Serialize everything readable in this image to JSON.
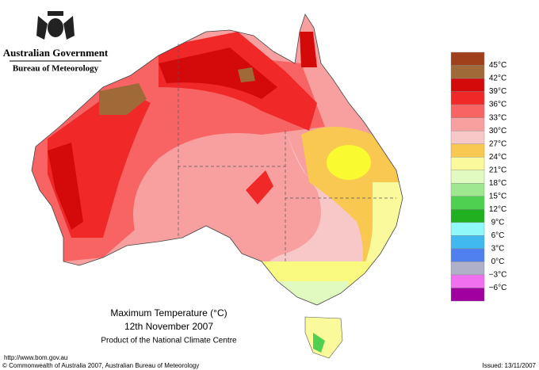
{
  "header": {
    "government": "Australian Government",
    "agency": "Bureau of Meteorology"
  },
  "legend": {
    "labels": [
      "45°C",
      "42°C",
      "39°C",
      "36°C",
      "33°C",
      "30°C",
      "27°C",
      "24°C",
      "21°C",
      "18°C",
      "15°C",
      "12°C",
      "9°C",
      "6°C",
      "3°C",
      "0°C",
      "−3°C",
      "−6°C"
    ],
    "colors": [
      "#a0401a",
      "#a06a38",
      "#d40a0a",
      "#f02828",
      "#f86464",
      "#f8a0a0",
      "#f8c8c8",
      "#f8c850",
      "#fafa9c",
      "#e0fac0",
      "#a0e890",
      "#50d050",
      "#20b020",
      "#90f8f8",
      "#40b8f0",
      "#5080f0",
      "#b0b0c8",
      "#f070f0",
      "#a000a0"
    ]
  },
  "map": {
    "title": "Maximum Temperature (°C)",
    "date": "12th November 2007",
    "product": "Product of the National Climate Centre"
  },
  "footer": {
    "url": "http://www.bom.gov.au",
    "copyright": "© Commonwealth of Australia 2007, Australian Bureau of Meteorology",
    "issued": "Issued: 13/11/2007"
  }
}
